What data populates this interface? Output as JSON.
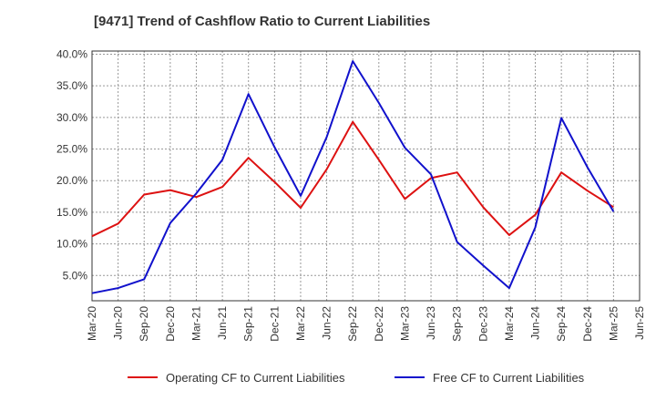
{
  "chart_data": {
    "type": "line",
    "title": "[9471]  Trend of Cashflow Ratio to Current Liabilities",
    "xlabel": "",
    "ylabel": "",
    "x_ticks": [
      "Mar-20",
      "Jun-20",
      "Sep-20",
      "Dec-20",
      "Mar-21",
      "Jun-21",
      "Sep-21",
      "Dec-21",
      "Mar-22",
      "Jun-22",
      "Sep-22",
      "Dec-22",
      "Mar-23",
      "Jun-23",
      "Sep-23",
      "Dec-23",
      "Mar-24",
      "Jun-24",
      "Sep-24",
      "Dec-24",
      "Mar-25",
      "Jun-25"
    ],
    "y_ticks": [
      "5.0%",
      "10.0%",
      "15.0%",
      "20.0%",
      "25.0%",
      "30.0%",
      "35.0%",
      "40.0%"
    ],
    "y_tick_values": [
      5,
      10,
      15,
      20,
      25,
      30,
      35,
      40
    ],
    "ylim": [
      1,
      40.5
    ],
    "grid": true,
    "legend_position": "bottom",
    "x": [
      "Mar-20",
      "Jun-20",
      "Sep-20",
      "Dec-20",
      "Mar-21",
      "Jun-21",
      "Sep-21",
      "Dec-21",
      "Mar-22",
      "Jun-22",
      "Sep-22",
      "Dec-22",
      "Mar-23",
      "Jun-23",
      "Sep-23",
      "Dec-23",
      "Mar-24",
      "Jun-24",
      "Sep-24",
      "Dec-24",
      "Mar-25"
    ],
    "series": [
      {
        "name": "Operating CF to Current Liabilities",
        "color": "#dd1111",
        "values": [
          11.2,
          13.2,
          17.8,
          18.5,
          17.4,
          19.0,
          23.6,
          19.8,
          15.7,
          21.8,
          29.3,
          23.3,
          17.1,
          20.4,
          21.3,
          15.8,
          11.4,
          14.6,
          21.3,
          18.4,
          15.8
        ]
      },
      {
        "name": "Free CF to Current Liabilities",
        "color": "#1111cc",
        "values": [
          2.2,
          3.0,
          4.4,
          13.3,
          18.0,
          23.3,
          33.7,
          25.3,
          17.6,
          26.9,
          38.9,
          32.3,
          25.2,
          21.0,
          10.3,
          6.6,
          3.0,
          12.6,
          29.9,
          22.1,
          15.1
        ]
      }
    ]
  }
}
